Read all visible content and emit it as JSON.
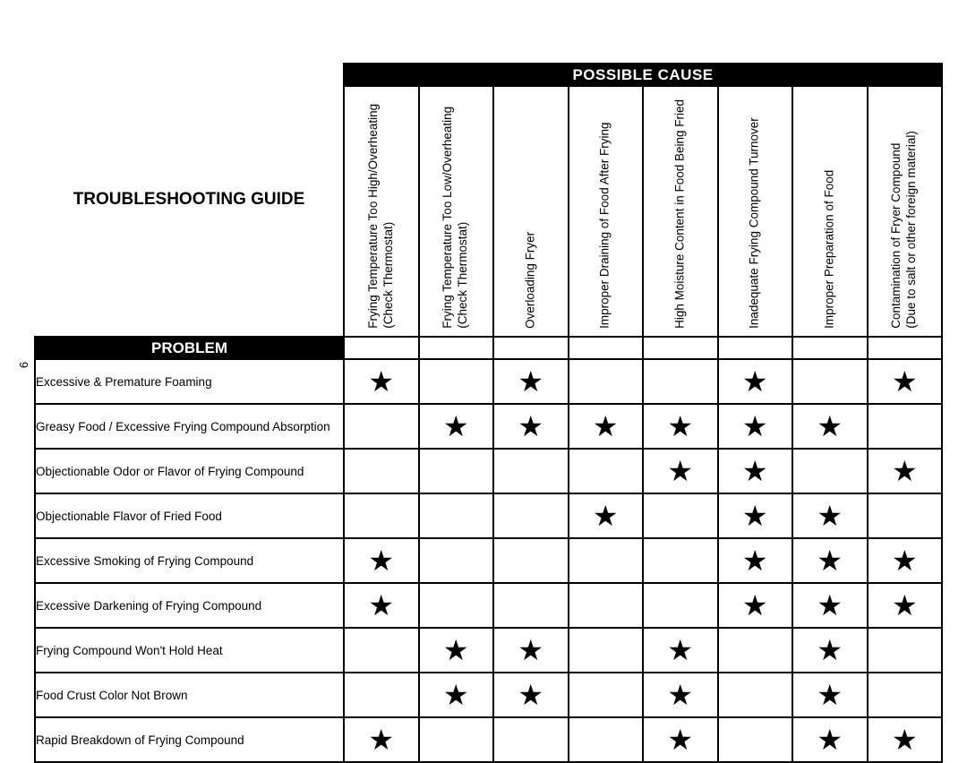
{
  "page_number": "6",
  "title": "TROUBLESHOOTING GUIDE",
  "headers": {
    "possible_cause": "POSSIBLE CAUSE",
    "problem": "PROBLEM"
  },
  "causes": [
    {
      "line1": "Frying Temperature Too High/Overheating",
      "line2": "(Check Thermostat)"
    },
    {
      "line1": "Frying Temperature Too Low/Overheating",
      "line2": "(Check Thermostat)"
    },
    {
      "line1": "Overloading Fryer",
      "line2": ""
    },
    {
      "line1": "Improper Draining of Food After Frying",
      "line2": ""
    },
    {
      "line1": "High Moisture Content in Food Being Fried",
      "line2": ""
    },
    {
      "line1": "Inadequate Frying Compound Turnover",
      "line2": ""
    },
    {
      "line1": "Improper Preparation of Food",
      "line2": ""
    },
    {
      "line1": "Contamination of Fryer Compound",
      "line2": "(Due to salt or other foreign material)"
    }
  ],
  "problems": [
    {
      "label": "Excessive & Premature Foaming",
      "marks": [
        1,
        0,
        1,
        0,
        0,
        1,
        0,
        1
      ]
    },
    {
      "label": "Greasy Food / Excessive Frying Compound Absorption",
      "marks": [
        0,
        1,
        1,
        1,
        1,
        1,
        1,
        0
      ]
    },
    {
      "label": "Objectionable Odor or Flavor of Frying Compound",
      "marks": [
        0,
        0,
        0,
        0,
        1,
        1,
        0,
        1
      ]
    },
    {
      "label": "Objectionable Flavor of Fried Food",
      "marks": [
        0,
        0,
        0,
        1,
        0,
        1,
        1,
        0
      ]
    },
    {
      "label": "Excessive Smoking of Frying Compound",
      "marks": [
        1,
        0,
        0,
        0,
        0,
        1,
        1,
        1
      ]
    },
    {
      "label": "Excessive Darkening of Frying Compound",
      "marks": [
        1,
        0,
        0,
        0,
        0,
        1,
        1,
        1
      ]
    },
    {
      "label": "Frying Compound Won't Hold Heat",
      "marks": [
        0,
        1,
        1,
        0,
        1,
        0,
        1,
        0
      ]
    },
    {
      "label": "Food Crust Color Not Brown",
      "marks": [
        0,
        1,
        1,
        0,
        1,
        0,
        1,
        0
      ]
    },
    {
      "label": "Rapid Breakdown of Frying Compound",
      "marks": [
        1,
        0,
        0,
        0,
        1,
        0,
        1,
        1
      ]
    }
  ],
  "colors": {
    "background": "#ffffff",
    "text": "#000000",
    "header_bg": "#000000",
    "header_fg": "#ffffff",
    "border": "#000000",
    "star": "#000000"
  },
  "typography": {
    "title_pt": 19,
    "header_pt": 17,
    "body_pt": 13.5,
    "font_family": "Arial"
  }
}
